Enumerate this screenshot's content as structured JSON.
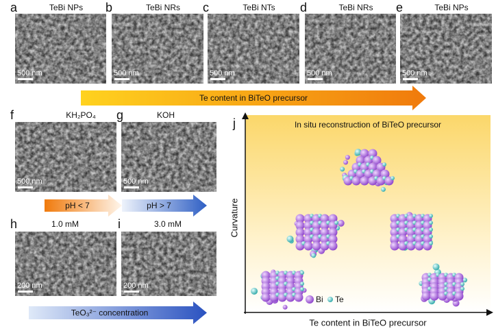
{
  "top_panels": [
    {
      "letter": "a",
      "title": "TeBi NPs",
      "scale_bar": "500 nm"
    },
    {
      "letter": "b",
      "title": "TeBi NRs",
      "scale_bar": "500 nm"
    },
    {
      "letter": "c",
      "title": "TeBi NTs",
      "scale_bar": "500 nm"
    },
    {
      "letter": "d",
      "title": "TeBi NRs",
      "scale_bar": "500 nm"
    },
    {
      "letter": "e",
      "title": "TeBi NPs",
      "scale_bar": "500 nm"
    }
  ],
  "top_arrow": "Te content in BiTeO precursor",
  "ph_panels": [
    {
      "letter": "f",
      "title": "KH₂PO₄",
      "scale_bar": "500 nm"
    },
    {
      "letter": "g",
      "title": "KOH",
      "scale_bar": "500 nm"
    }
  ],
  "ph_arrows": [
    "pH < 7",
    "pH > 7"
  ],
  "conc_panels": [
    {
      "letter": "h",
      "title": "1.0 mM",
      "scale_bar": "200 nm"
    },
    {
      "letter": "i",
      "title": "3.0 mM",
      "scale_bar": "200 nm"
    }
  ],
  "conc_arrow": "TeO₃²⁻ concentration",
  "scheme": {
    "letter": "j",
    "title": "In situ reconstruction of BiTeO precursor",
    "y_label": "Curvature",
    "x_label": "Te content in BiTeO precursor",
    "legend": [
      "Bi",
      "Te"
    ]
  }
}
